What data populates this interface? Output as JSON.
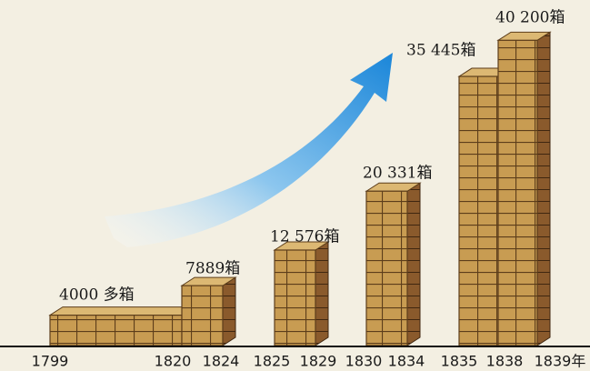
{
  "chart_data": {
    "type": "bar",
    "values": [
      4000,
      7889,
      12576,
      20331,
      35445,
      40200
    ],
    "value_labels": [
      "4000 多箱",
      "7889箱",
      "12 576箱",
      "20 331箱",
      "35 445箱",
      "40 200箱"
    ],
    "xticks": [
      1799,
      1820,
      1824,
      1825,
      1829,
      1830,
      1834,
      1835,
      1838,
      {
        "value": 1839,
        "label": "1839年"
      }
    ],
    "color": "#c89c52"
  }
}
